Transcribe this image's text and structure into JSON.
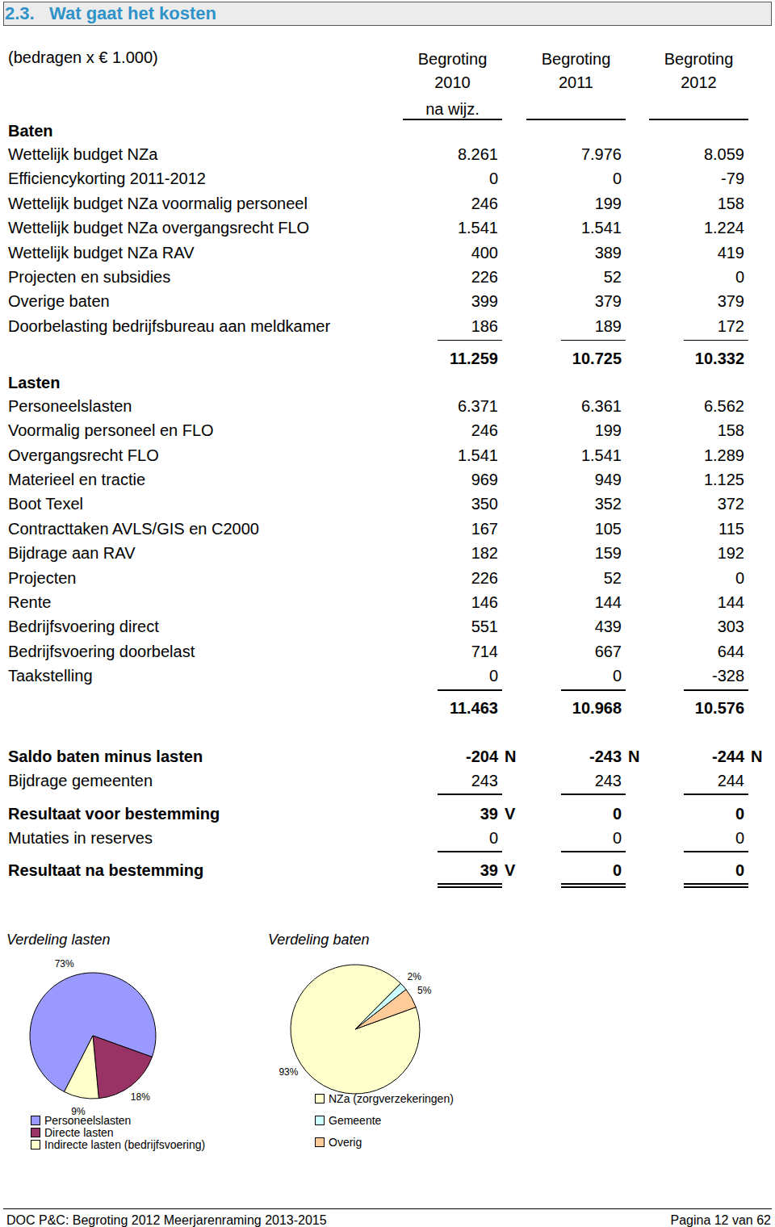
{
  "header": {
    "title": "2.3.   Wat gaat het kosten"
  },
  "table": {
    "unit_note": "(bedragen x € 1.000)",
    "columns": [
      [
        "Begroting",
        "2010",
        "na wijz."
      ],
      [
        "Begroting",
        "2011"
      ],
      [
        "Begroting",
        "2012"
      ]
    ],
    "sections": [
      {
        "title": "Baten",
        "rows": [
          [
            "Wettelijk budget NZa",
            "8.261",
            "7.976",
            "8.059"
          ],
          [
            "Efficiencykorting 2011-2012",
            "0",
            "0",
            "-79"
          ],
          [
            "Wettelijk budget NZa voormalig personeel",
            "246",
            "199",
            "158"
          ],
          [
            "Wettelijk budget NZa overgangsrecht FLO",
            "1.541",
            "1.541",
            "1.224"
          ],
          [
            "Wettelijk budget NZa RAV",
            "400",
            "389",
            "419"
          ],
          [
            "Projecten en subsidies",
            "226",
            "52",
            "0"
          ],
          [
            "Overige baten",
            "399",
            "379",
            "379"
          ],
          [
            "Doorbelasting bedrijfsbureau aan meldkamer",
            "186",
            "189",
            "172"
          ]
        ],
        "total": [
          "11.259",
          "10.725",
          "10.332"
        ]
      },
      {
        "title": "Lasten",
        "rows": [
          [
            "Personeelslasten",
            "6.371",
            "6.361",
            "6.562"
          ],
          [
            "Voormalig personeel en FLO",
            "246",
            "199",
            "158"
          ],
          [
            "Overgangsrecht FLO",
            "1.541",
            "1.541",
            "1.289"
          ],
          [
            "Materieel en tractie",
            "969",
            "949",
            "1.125"
          ],
          [
            "Boot Texel",
            "350",
            "352",
            "372"
          ],
          [
            "Contracttaken AVLS/GIS en C2000",
            "167",
            "105",
            "115"
          ],
          [
            "Bijdrage aan RAV",
            "182",
            "159",
            "192"
          ],
          [
            "Projecten",
            "226",
            "52",
            "0"
          ],
          [
            "Rente",
            "146",
            "144",
            "144"
          ],
          [
            "Bedrijfsvoering direct",
            "551",
            "439",
            "303"
          ],
          [
            "Bedrijfsvoering doorbelast",
            "714",
            "667",
            "644"
          ],
          [
            "Taakstelling",
            "0",
            "0",
            "-328"
          ]
        ],
        "total": [
          "11.463",
          "10.968",
          "10.576"
        ]
      }
    ],
    "summary": [
      {
        "label": "Saldo baten minus lasten",
        "values": [
          "-204",
          "-243",
          "-244"
        ],
        "marks": [
          "N",
          "N",
          "N"
        ],
        "bold": true
      },
      {
        "label": "Bijdrage gemeenten",
        "values": [
          "243",
          "243",
          "244"
        ],
        "marks": [
          null,
          null,
          null
        ],
        "bold": false
      },
      {
        "label": "Resultaat voor bestemming",
        "values": [
          "39",
          "0",
          "0"
        ],
        "marks": [
          "V",
          null,
          null
        ],
        "bold": true
      },
      {
        "label": "Mutaties in reserves",
        "values": [
          "0",
          "0",
          "0"
        ],
        "marks": [
          null,
          null,
          null
        ],
        "bold": false
      },
      {
        "label": "Resultaat na bestemming",
        "values": [
          "39",
          "0",
          "0"
        ],
        "marks": [
          "V",
          null,
          null
        ],
        "bold": true
      }
    ]
  },
  "chart_data": [
    {
      "type": "pie",
      "title": "Verdeling lasten",
      "categories": [
        "Personeelslasten",
        "Directe lasten",
        "Indirecte lasten (bedrijfsvoering)"
      ],
      "values": [
        73,
        18,
        9
      ],
      "value_labels": [
        "73%",
        "18%",
        "9%"
      ],
      "colors": [
        "#9999ff",
        "#993366",
        "#ffffcc"
      ],
      "data_labels": true,
      "legend": "bottom"
    },
    {
      "type": "pie",
      "title": "Verdeling baten",
      "categories": [
        "NZa (zorgverzekeringen)",
        "Gemeente",
        "Overig"
      ],
      "values": [
        93,
        2,
        5
      ],
      "value_labels": [
        "93%",
        "2%",
        "5%"
      ],
      "colors": [
        "#ffffcc",
        "#ccffff",
        "#ffcc99"
      ],
      "data_labels": true,
      "legend": "bottom"
    }
  ],
  "footer": {
    "left": "DOC P&C: Begroting 2012 Meerjarenraming 2013-2015",
    "right": "Pagina 12 van 62"
  }
}
